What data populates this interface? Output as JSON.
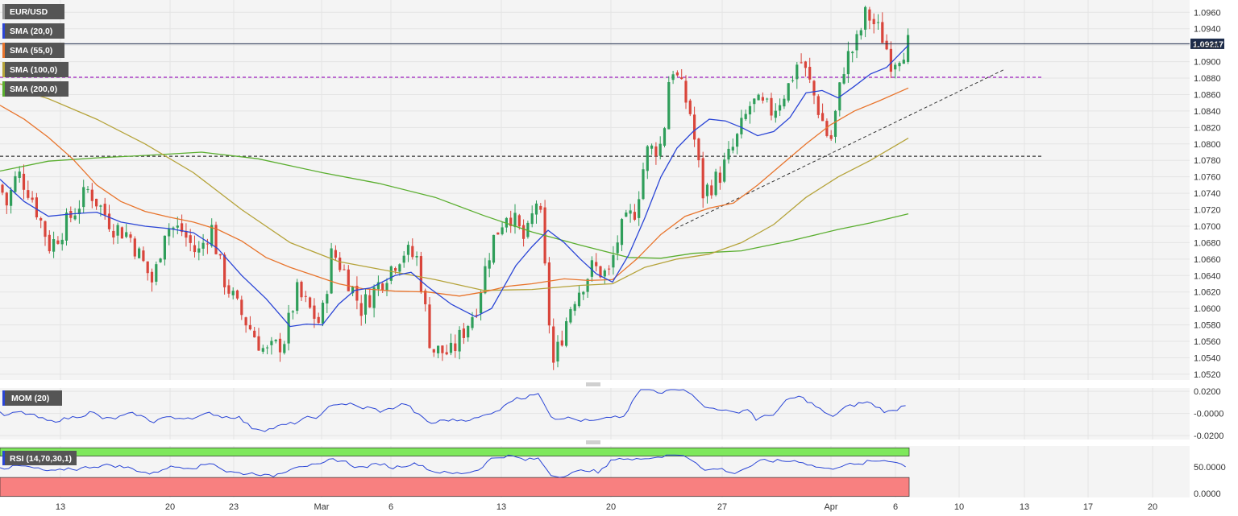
{
  "chart_data": {
    "type": "candlestick",
    "title": "EUR/USD",
    "indicators": [
      "SMA (20,0)",
      "SMA (55,0)",
      "SMA (100,0)",
      "SMA (200,0)"
    ],
    "indicator_colors": [
      "#2a45d6",
      "#e8742c",
      "#b5a33a",
      "#5aae2f"
    ],
    "last_price": "1.09217",
    "price_axis": {
      "min": 1.0515,
      "max": 1.0973,
      "ticks": [
        "1.0960",
        "1.0940",
        "1.0920",
        "1.0900",
        "1.0880",
        "1.0860",
        "1.0840",
        "1.0820",
        "1.0800",
        "1.0780",
        "1.0760",
        "1.0740",
        "1.0720",
        "1.0700",
        "1.0680",
        "1.0660",
        "1.0640",
        "1.0620",
        "1.0600",
        "1.0580",
        "1.0560",
        "1.0540",
        "1.0520"
      ]
    },
    "x_labels": [
      "13",
      "20",
      "23",
      "Mar",
      "6",
      "13",
      "20",
      "27",
      "Apr",
      "6",
      "10",
      "13",
      "17",
      "20"
    ],
    "x_label_positions": [
      75,
      211,
      290,
      399,
      485,
      622,
      758,
      896,
      1031,
      1111,
      1190,
      1271,
      1350,
      1430
    ],
    "horizontal_levels": [
      {
        "price": 1.0881,
        "color": "#a020c0"
      },
      {
        "price": 1.0785,
        "color": "#333333"
      }
    ],
    "trendline": {
      "x_start": 838,
      "y_start": 1.0697,
      "x_end": 1245,
      "y_end": 1.089
    },
    "ohlc_anchors": [
      [
        1.075,
        0
      ],
      [
        1.0726,
        8
      ],
      [
        1.0765,
        22
      ],
      [
        1.074,
        38
      ],
      [
        1.0675,
        62
      ],
      [
        1.07,
        80
      ],
      [
        1.0745,
        110
      ],
      [
        1.07,
        140
      ],
      [
        1.069,
        160
      ],
      [
        1.066,
        175
      ],
      [
        1.063,
        190
      ],
      [
        1.07,
        205
      ],
      [
        1.0695,
        225
      ],
      [
        1.0665,
        245
      ],
      [
        1.07,
        262
      ],
      [
        1.064,
        276
      ],
      [
        1.06,
        295
      ],
      [
        1.0545,
        330
      ],
      [
        1.056,
        352
      ],
      [
        1.062,
        368
      ],
      [
        1.058,
        398
      ],
      [
        1.067,
        412
      ],
      [
        1.064,
        430
      ],
      [
        1.06,
        448
      ],
      [
        1.063,
        470
      ],
      [
        1.067,
        500
      ],
      [
        1.066,
        518
      ],
      [
        1.055,
        535
      ],
      [
        1.0545,
        560
      ],
      [
        1.06,
        590
      ],
      [
        1.068,
        610
      ],
      [
        1.072,
        630
      ],
      [
        1.068,
        652
      ],
      [
        1.074,
        668
      ],
      [
        1.053,
        686
      ],
      [
        1.061,
        710
      ],
      [
        1.065,
        735
      ],
      [
        1.064,
        755
      ],
      [
        1.069,
        768
      ],
      [
        1.072,
        788
      ],
      [
        1.079,
        802
      ],
      [
        1.08,
        822
      ],
      [
        1.09,
        832
      ],
      [
        1.084,
        856
      ],
      [
        1.074,
        872
      ],
      [
        1.076,
        892
      ],
      [
        1.08,
        912
      ],
      [
        1.085,
        932
      ],
      [
        1.084,
        958
      ],
      [
        1.087,
        978
      ],
      [
        1.0905,
        992
      ],
      [
        1.087,
        1006
      ],
      [
        1.08,
        1030
      ],
      [
        1.09,
        1048
      ],
      [
        1.092,
        1062
      ],
      [
        1.096,
        1075
      ],
      [
        1.093,
        1095
      ],
      [
        1.09,
        1106
      ],
      [
        1.0922,
        1127
      ]
    ],
    "sma_20": [
      [
        0,
        1.0757
      ],
      [
        30,
        1.073
      ],
      [
        60,
        1.0712
      ],
      [
        90,
        1.0715
      ],
      [
        120,
        1.0717
      ],
      [
        150,
        1.0705
      ],
      [
        180,
        1.07
      ],
      [
        210,
        1.0697
      ],
      [
        240,
        1.0692
      ],
      [
        270,
        1.0673
      ],
      [
        300,
        1.064
      ],
      [
        330,
        1.0612
      ],
      [
        360,
        1.0578
      ],
      [
        380,
        1.0581
      ],
      [
        400,
        1.058
      ],
      [
        420,
        1.0605
      ],
      [
        440,
        1.0622
      ],
      [
        460,
        1.0625
      ],
      [
        490,
        1.064
      ],
      [
        510,
        1.0644
      ],
      [
        530,
        1.0627
      ],
      [
        560,
        1.0605
      ],
      [
        590,
        1.059
      ],
      [
        610,
        1.06
      ],
      [
        640,
        1.0652
      ],
      [
        660,
        1.0675
      ],
      [
        680,
        1.0695
      ],
      [
        700,
        1.068
      ],
      [
        720,
        1.066
      ],
      [
        740,
        1.0642
      ],
      [
        760,
        1.0632
      ],
      [
        780,
        1.0665
      ],
      [
        800,
        1.071
      ],
      [
        820,
        1.076
      ],
      [
        840,
        1.0795
      ],
      [
        860,
        1.0815
      ],
      [
        880,
        1.083
      ],
      [
        900,
        1.0828
      ],
      [
        920,
        1.082
      ],
      [
        940,
        1.081
      ],
      [
        960,
        1.0815
      ],
      [
        980,
        1.0832
      ],
      [
        1000,
        1.0862
      ],
      [
        1020,
        1.0865
      ],
      [
        1040,
        1.0856
      ],
      [
        1060,
        1.087
      ],
      [
        1080,
        1.0885
      ],
      [
        1100,
        1.0893
      ],
      [
        1127,
        1.092
      ]
    ],
    "sma_55": [
      [
        0,
        1.0847
      ],
      [
        30,
        1.083
      ],
      [
        60,
        1.0808
      ],
      [
        90,
        1.0782
      ],
      [
        120,
        1.075
      ],
      [
        150,
        1.073
      ],
      [
        180,
        1.0718
      ],
      [
        210,
        1.0711
      ],
      [
        240,
        1.0705
      ],
      [
        270,
        1.0696
      ],
      [
        300,
        1.0682
      ],
      [
        330,
        1.0662
      ],
      [
        360,
        1.065
      ],
      [
        390,
        1.064
      ],
      [
        420,
        1.063
      ],
      [
        450,
        1.0624
      ],
      [
        490,
        1.0621
      ],
      [
        530,
        1.062
      ],
      [
        570,
        1.0615
      ],
      [
        600,
        1.062
      ],
      [
        630,
        1.0627
      ],
      [
        660,
        1.063
      ],
      [
        700,
        1.0636
      ],
      [
        730,
        1.0634
      ],
      [
        760,
        1.0635
      ],
      [
        790,
        1.066
      ],
      [
        820,
        1.069
      ],
      [
        850,
        1.0712
      ],
      [
        880,
        1.0722
      ],
      [
        910,
        1.0728
      ],
      [
        940,
        1.075
      ],
      [
        970,
        1.0775
      ],
      [
        1000,
        1.08
      ],
      [
        1030,
        1.0823
      ],
      [
        1060,
        1.084
      ],
      [
        1090,
        1.0852
      ],
      [
        1127,
        1.0868
      ]
    ],
    "sma_100": [
      [
        0,
        1.0873
      ],
      [
        60,
        1.0855
      ],
      [
        120,
        1.083
      ],
      [
        180,
        1.08
      ],
      [
        240,
        1.0765
      ],
      [
        300,
        1.072
      ],
      [
        360,
        1.068
      ],
      [
        420,
        1.0657
      ],
      [
        480,
        1.0646
      ],
      [
        540,
        1.0635
      ],
      [
        600,
        1.0622
      ],
      [
        660,
        1.0623
      ],
      [
        720,
        1.0628
      ],
      [
        760,
        1.063
      ],
      [
        800,
        1.065
      ],
      [
        840,
        1.066
      ],
      [
        880,
        1.0666
      ],
      [
        920,
        1.068
      ],
      [
        960,
        1.0702
      ],
      [
        1000,
        1.0735
      ],
      [
        1040,
        1.076
      ],
      [
        1080,
        1.078
      ],
      [
        1127,
        1.0807
      ]
    ],
    "sma_200": [
      [
        0,
        1.0767
      ],
      [
        60,
        1.0779
      ],
      [
        120,
        1.0783
      ],
      [
        180,
        1.0786
      ],
      [
        250,
        1.079
      ],
      [
        320,
        1.0782
      ],
      [
        400,
        1.0765
      ],
      [
        470,
        1.0752
      ],
      [
        540,
        1.0735
      ],
      [
        600,
        1.0713
      ],
      [
        660,
        1.0693
      ],
      [
        720,
        1.0677
      ],
      [
        780,
        1.0662
      ],
      [
        820,
        1.0661
      ],
      [
        860,
        1.0667
      ],
      [
        920,
        1.067
      ],
      [
        980,
        1.0682
      ],
      [
        1040,
        1.0696
      ],
      [
        1080,
        1.0704
      ],
      [
        1127,
        1.0715
      ]
    ],
    "mom": {
      "label": "MOM (20)",
      "min": -0.0228,
      "max": 0.0215,
      "ticks": [
        "0.0200",
        "-0.0000",
        "-0.0200"
      ]
    },
    "rsi": {
      "label": "RSI (14,70,30,1)",
      "min": -6,
      "max": 86,
      "ticks": [
        "50.0000",
        "0.0000"
      ],
      "overbought": 70,
      "oversold": 30
    }
  }
}
